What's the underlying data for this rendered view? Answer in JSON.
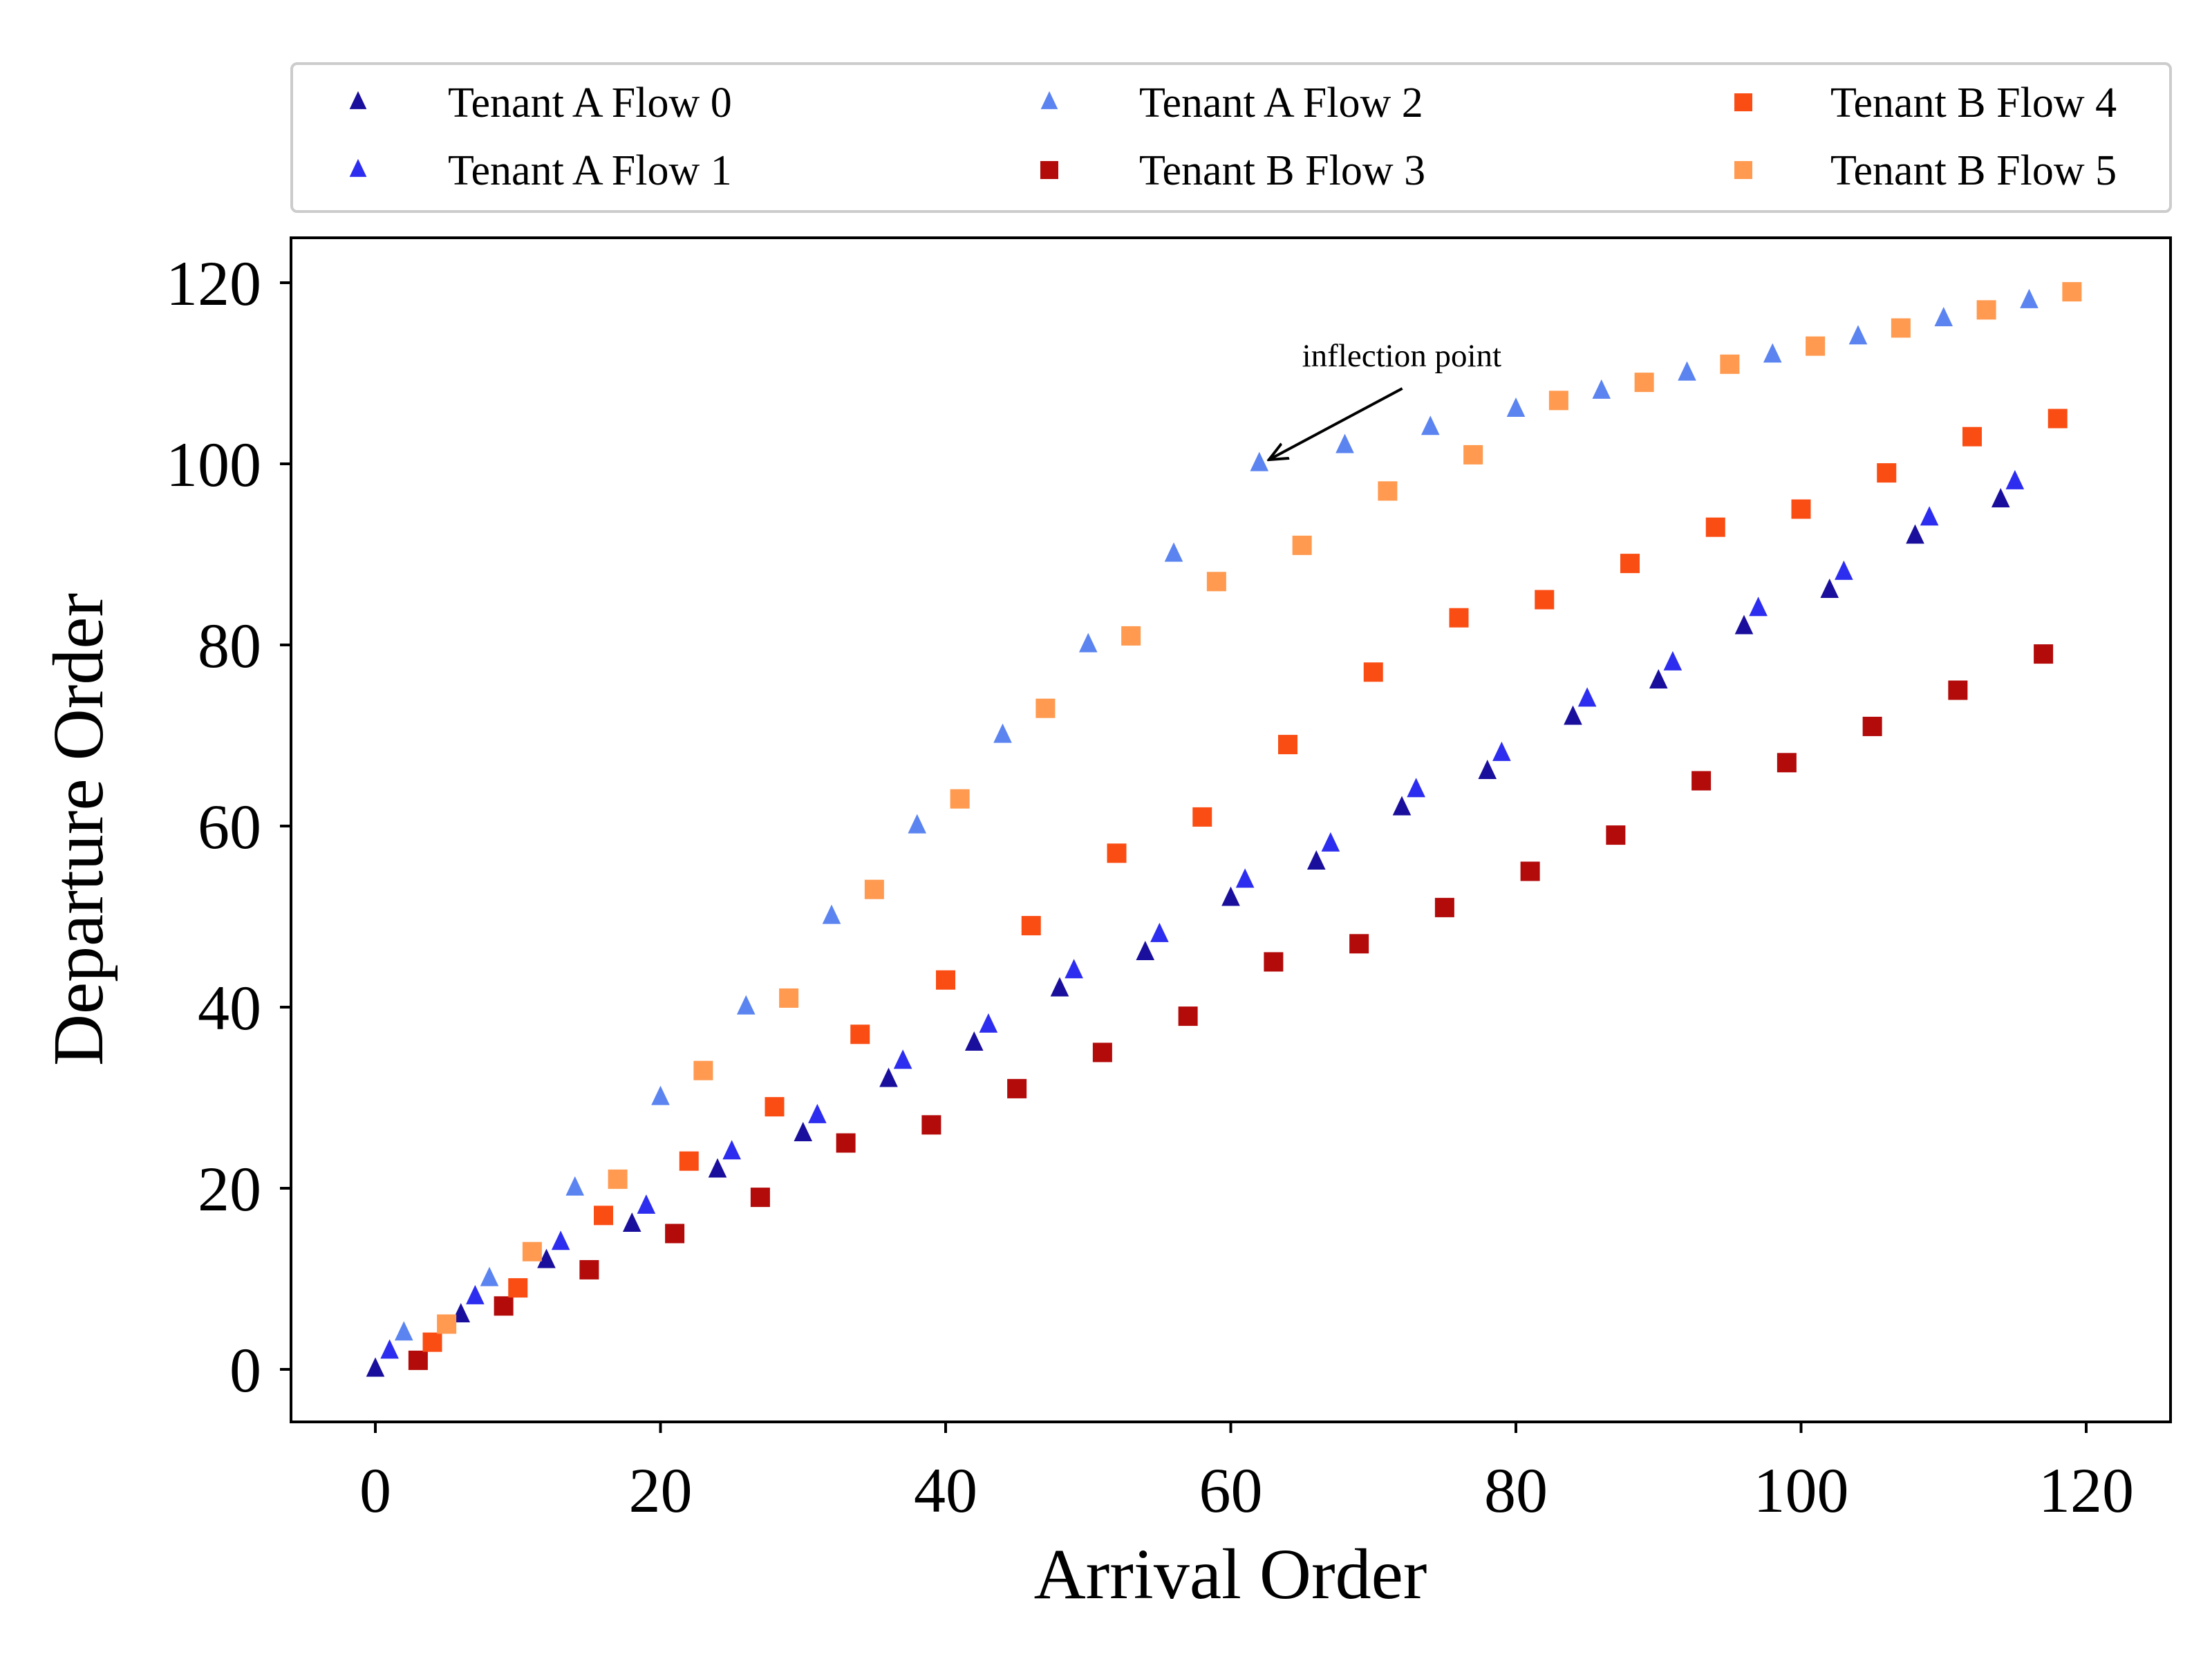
{
  "chart_data": {
    "type": "scatter",
    "xlabel": "Arrival Order",
    "ylabel": "Departure Order",
    "xlim": [
      -6,
      125
    ],
    "ylim": [
      -6,
      125
    ],
    "xticks": [
      "0",
      "20",
      "40",
      "60",
      "80",
      "100",
      "120"
    ],
    "yticks": [
      "0",
      "20",
      "40",
      "60",
      "80",
      "100",
      "120"
    ],
    "grid": false,
    "legend_placement": "top, above plot, 3 columns",
    "annotation": {
      "text": "inflection point",
      "x": 62,
      "y": 100,
      "text_x": 65,
      "text_y": 110
    },
    "series": [
      {
        "name": "Tenant A Flow 0",
        "marker": "triangle",
        "color": "#1a0f9c",
        "points": [
          [
            0,
            0
          ],
          [
            6,
            6
          ],
          [
            12,
            12
          ],
          [
            18,
            16
          ],
          [
            24,
            22
          ],
          [
            30,
            26
          ],
          [
            36,
            32
          ],
          [
            42,
            36
          ],
          [
            48,
            42
          ],
          [
            54,
            46
          ],
          [
            60,
            52
          ],
          [
            66,
            56
          ],
          [
            72,
            62
          ],
          [
            78,
            66
          ],
          [
            84,
            72
          ],
          [
            90,
            76
          ],
          [
            96,
            82
          ],
          [
            102,
            86
          ],
          [
            108,
            92
          ],
          [
            114,
            96
          ]
        ]
      },
      {
        "name": "Tenant A Flow 1",
        "marker": "triangle",
        "color": "#2d2df0",
        "points": [
          [
            1,
            2
          ],
          [
            7,
            8
          ],
          [
            13,
            14
          ],
          [
            19,
            18
          ],
          [
            25,
            24
          ],
          [
            31,
            28
          ],
          [
            37,
            34
          ],
          [
            43,
            38
          ],
          [
            49,
            44
          ],
          [
            55,
            48
          ],
          [
            61,
            54
          ],
          [
            67,
            58
          ],
          [
            73,
            64
          ],
          [
            79,
            68
          ],
          [
            85,
            74
          ],
          [
            91,
            78
          ],
          [
            97,
            84
          ],
          [
            103,
            88
          ],
          [
            109,
            94
          ],
          [
            115,
            98
          ]
        ]
      },
      {
        "name": "Tenant A Flow 2",
        "marker": "triangle",
        "color": "#5b84f0",
        "points": [
          [
            2,
            4
          ],
          [
            8,
            10
          ],
          [
            14,
            20
          ],
          [
            20,
            30
          ],
          [
            26,
            40
          ],
          [
            32,
            50
          ],
          [
            38,
            60
          ],
          [
            44,
            70
          ],
          [
            50,
            80
          ],
          [
            56,
            90
          ],
          [
            62,
            100
          ],
          [
            68,
            102
          ],
          [
            74,
            104
          ],
          [
            80,
            106
          ],
          [
            86,
            108
          ],
          [
            92,
            110
          ],
          [
            98,
            112
          ],
          [
            104,
            114
          ],
          [
            110,
            116
          ],
          [
            116,
            118
          ]
        ]
      },
      {
        "name": "Tenant B Flow 3",
        "marker": "square",
        "color": "#b30a0a",
        "points": [
          [
            3,
            1
          ],
          [
            9,
            7
          ],
          [
            15,
            11
          ],
          [
            21,
            15
          ],
          [
            27,
            19
          ],
          [
            33,
            25
          ],
          [
            39,
            27
          ],
          [
            45,
            31
          ],
          [
            51,
            35
          ],
          [
            57,
            39
          ],
          [
            63,
            45
          ],
          [
            69,
            47
          ],
          [
            75,
            51
          ],
          [
            81,
            55
          ],
          [
            87,
            59
          ],
          [
            93,
            65
          ],
          [
            99,
            67
          ],
          [
            105,
            71
          ],
          [
            111,
            75
          ],
          [
            117,
            79
          ]
        ]
      },
      {
        "name": "Tenant B Flow 4",
        "marker": "square",
        "color": "#fa4d14",
        "points": [
          [
            4,
            3
          ],
          [
            10,
            9
          ],
          [
            16,
            17
          ],
          [
            22,
            23
          ],
          [
            28,
            29
          ],
          [
            34,
            37
          ],
          [
            40,
            43
          ],
          [
            46,
            49
          ],
          [
            52,
            57
          ],
          [
            58,
            61
          ],
          [
            64,
            69
          ],
          [
            70,
            77
          ],
          [
            76,
            83
          ],
          [
            82,
            85
          ],
          [
            88,
            89
          ],
          [
            94,
            93
          ],
          [
            100,
            95
          ],
          [
            106,
            99
          ],
          [
            112,
            103
          ],
          [
            118,
            105
          ]
        ]
      },
      {
        "name": "Tenant B Flow 5",
        "marker": "square",
        "color": "#ff9a50",
        "points": [
          [
            5,
            5
          ],
          [
            11,
            13
          ],
          [
            17,
            21
          ],
          [
            23,
            33
          ],
          [
            29,
            41
          ],
          [
            35,
            53
          ],
          [
            41,
            63
          ],
          [
            47,
            73
          ],
          [
            53,
            81
          ],
          [
            59,
            87
          ],
          [
            65,
            91
          ],
          [
            71,
            97
          ],
          [
            77,
            101
          ],
          [
            83,
            107
          ],
          [
            89,
            109
          ],
          [
            95,
            111
          ],
          [
            101,
            113
          ],
          [
            107,
            115
          ],
          [
            113,
            117
          ],
          [
            119,
            119
          ]
        ]
      }
    ]
  }
}
